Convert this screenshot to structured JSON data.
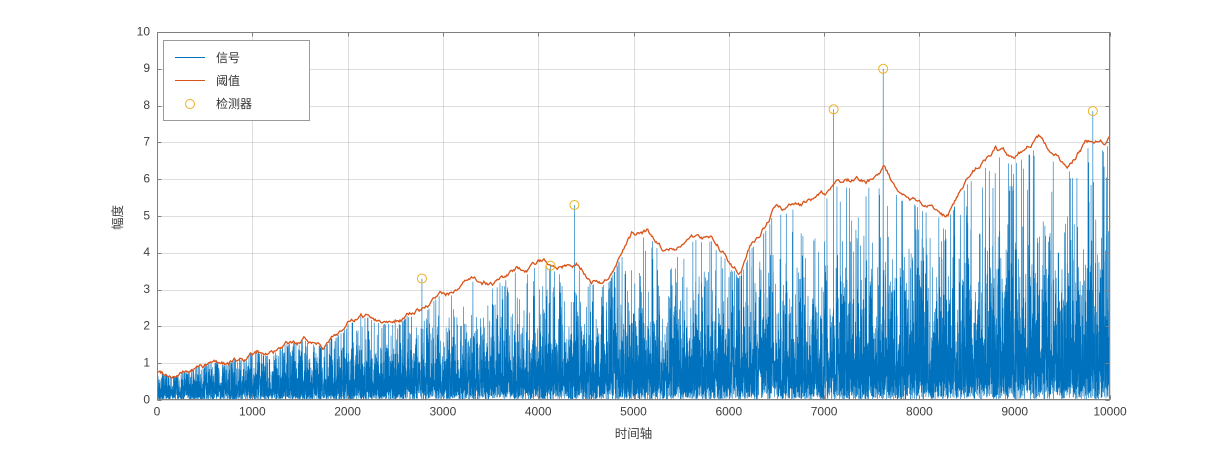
{
  "chart_data": {
    "type": "line",
    "xlabel": "时间轴",
    "ylabel": "幅度",
    "xlim": [
      0,
      10000
    ],
    "ylim": [
      0,
      10
    ],
    "xticks": [
      0,
      1000,
      2000,
      3000,
      4000,
      5000,
      6000,
      7000,
      8000,
      9000,
      10000
    ],
    "yticks": [
      0,
      1,
      2,
      3,
      4,
      5,
      6,
      7,
      8,
      9,
      10
    ],
    "grid": true,
    "colors": {
      "signal": "#0072BD",
      "threshold": "#D95319",
      "detector": "#EDB120",
      "grid": "rgba(0,0,0,0.13)",
      "axis": "#7f7f7f",
      "tick_text": "#3f3f3f",
      "background": "#ffffff"
    },
    "legend": {
      "position": "top-left",
      "entries": [
        {
          "label": "信号",
          "type": "line",
          "color": "#0072BD"
        },
        {
          "label": "阈值",
          "type": "line",
          "color": "#D95319"
        },
        {
          "label": "检测器",
          "type": "circle",
          "color": "#EDB120"
        }
      ]
    },
    "series": [
      {
        "name": "信号",
        "kind": "noise",
        "n": 10000,
        "seed": 42,
        "distribution": "exponential",
        "envelope_start": 0.3,
        "envelope_end": 1.5,
        "cap_vs_threshold": 0.97
      },
      {
        "name": "阈值",
        "kind": "line",
        "points": [
          [
            0,
            0.75
          ],
          [
            250,
            0.8
          ],
          [
            500,
            0.95
          ],
          [
            750,
            1.0
          ],
          [
            1000,
            1.15
          ],
          [
            1250,
            1.3
          ],
          [
            1500,
            1.35
          ],
          [
            1750,
            1.45
          ],
          [
            2000,
            2.05
          ],
          [
            2250,
            2.15
          ],
          [
            2400,
            2.1
          ],
          [
            2500,
            2.3
          ],
          [
            2750,
            2.55
          ],
          [
            3000,
            2.85
          ],
          [
            3250,
            3.1
          ],
          [
            3500,
            3.1
          ],
          [
            3750,
            3.3
          ],
          [
            4000,
            3.5
          ],
          [
            4250,
            3.7
          ],
          [
            4400,
            3.8
          ],
          [
            4550,
            3.45
          ],
          [
            4750,
            3.5
          ],
          [
            5000,
            4.45
          ],
          [
            5150,
            4.5
          ],
          [
            5300,
            4.1
          ],
          [
            5500,
            4.4
          ],
          [
            5750,
            4.5
          ],
          [
            6000,
            3.9
          ],
          [
            6100,
            3.75
          ],
          [
            6250,
            4.6
          ],
          [
            6500,
            5.4
          ],
          [
            6750,
            5.3
          ],
          [
            7000,
            5.5
          ],
          [
            7250,
            5.7
          ],
          [
            7500,
            5.85
          ],
          [
            7620,
            6.3
          ],
          [
            7750,
            5.7
          ],
          [
            8000,
            5.45
          ],
          [
            8300,
            5.15
          ],
          [
            8500,
            6.0
          ],
          [
            8800,
            7.0
          ],
          [
            9000,
            6.5
          ],
          [
            9250,
            7.0
          ],
          [
            9550,
            6.2
          ],
          [
            9750,
            7.0
          ],
          [
            10000,
            7.2
          ]
        ]
      },
      {
        "name": "检测器",
        "kind": "scatter",
        "marker": "circle",
        "points": [
          [
            2780,
            3.3
          ],
          [
            4130,
            3.65
          ],
          [
            4380,
            5.3
          ],
          [
            7100,
            7.9
          ],
          [
            7620,
            9.0
          ],
          [
            9820,
            7.85
          ]
        ]
      }
    ]
  }
}
